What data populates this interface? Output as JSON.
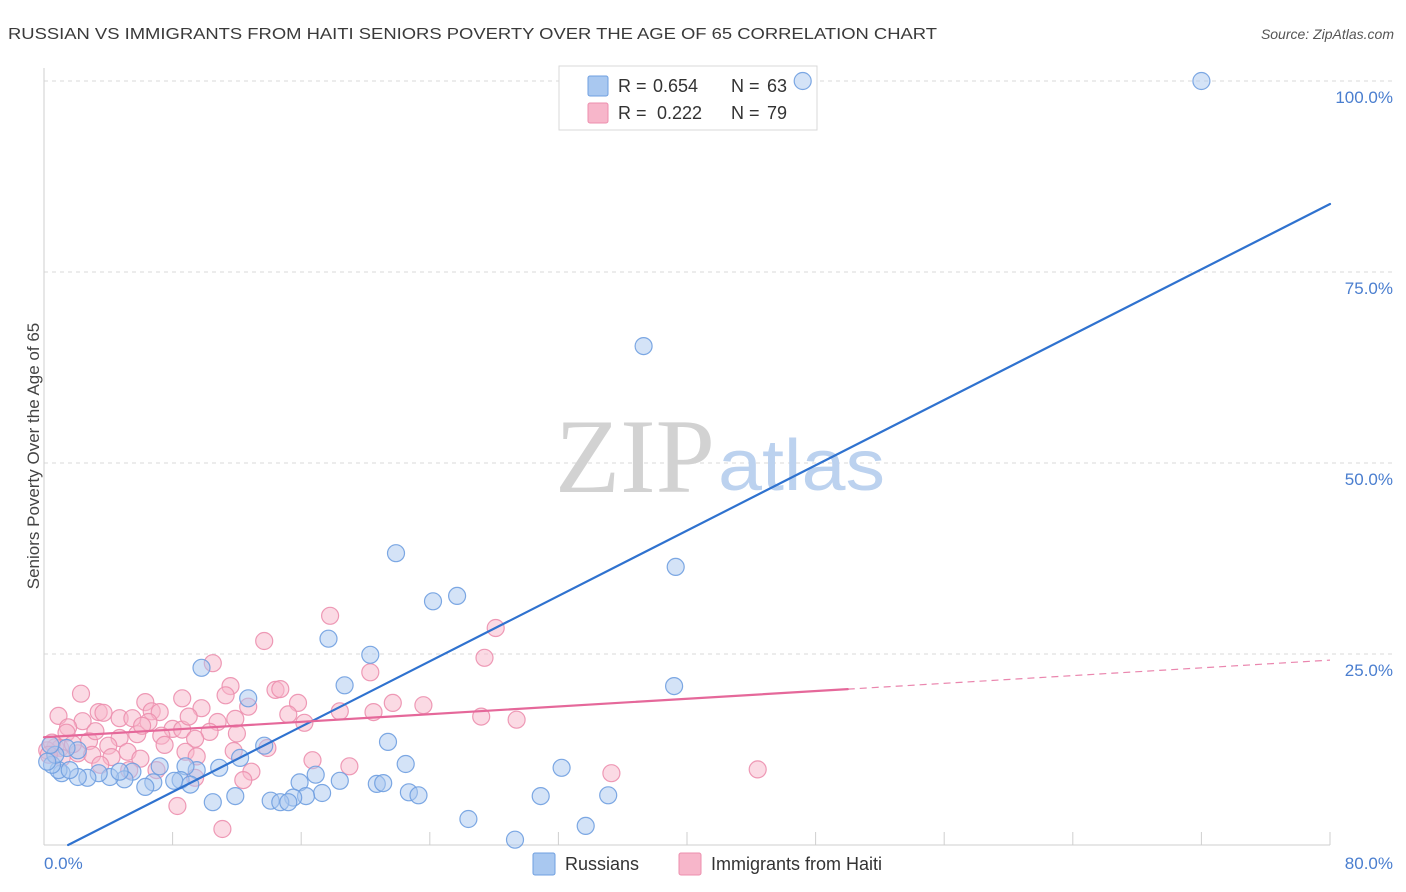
{
  "source": "Source: ZipAtlas.com",
  "watermark": {
    "zip": "ZIP",
    "atlas": "atlas"
  },
  "colors": {
    "russians_fill": "#a9c8f0",
    "russians_stroke": "#6f9fe0",
    "russians_line": "#2f72cf",
    "haiti_fill": "#f7b6ca",
    "haiti_stroke": "#ec8fae",
    "haiti_line": "#e5689a",
    "tick_label": "#4a7ecf",
    "grid": "#dadada",
    "axis": "#cfcfcf"
  },
  "legend": {
    "r_label": "R =",
    "n_label": "N ="
  },
  "chart_data": {
    "type": "scatter",
    "title": "RUSSIAN VS IMMIGRANTS FROM HAITI SENIORS POVERTY OVER THE AGE OF 65 CORRELATION CHART",
    "xlabel": "",
    "ylabel": "Seniors Poverty Over the Age of 65",
    "xlim": [
      0,
      80
    ],
    "ylim": [
      0,
      100
    ],
    "x_ticks": [
      0,
      8,
      16,
      24,
      32,
      40,
      48,
      56,
      64,
      72,
      80
    ],
    "x_tick_labels": [
      "0.0%",
      "80.0%"
    ],
    "y_ticks": [
      {
        "value": 100,
        "label": "100.0%"
      },
      {
        "value": 75,
        "label": "75.0%"
      },
      {
        "value": 50,
        "label": "50.0%"
      },
      {
        "value": 25,
        "label": "25.0%"
      }
    ],
    "grid": true,
    "legend_position": "top-center",
    "series": [
      {
        "name": "Russians",
        "R": "0.654",
        "N": "63",
        "trend": {
          "solid": [
            [
              1.5,
              0
            ],
            [
              80,
              83.9
            ]
          ]
        },
        "points": [
          [
            47.2,
            100
          ],
          [
            72.0,
            100
          ],
          [
            37.3,
            65.3
          ],
          [
            39.3,
            36.4
          ],
          [
            21.9,
            38.2
          ],
          [
            24.2,
            31.9
          ],
          [
            25.7,
            32.6
          ],
          [
            17.7,
            27.0
          ],
          [
            20.3,
            24.9
          ],
          [
            18.7,
            20.9
          ],
          [
            39.2,
            20.8
          ],
          [
            9.8,
            23.2
          ],
          [
            12.7,
            19.2
          ],
          [
            21.4,
            13.5
          ],
          [
            13.7,
            13.0
          ],
          [
            12.2,
            11.4
          ],
          [
            22.5,
            10.6
          ],
          [
            32.2,
            10.1
          ],
          [
            10.9,
            10.1
          ],
          [
            9.5,
            9.8
          ],
          [
            7.2,
            10.3
          ],
          [
            8.8,
            10.3
          ],
          [
            5.5,
            9.6
          ],
          [
            16.9,
            9.2
          ],
          [
            15.9,
            8.2
          ],
          [
            18.4,
            8.4
          ],
          [
            20.7,
            8.0
          ],
          [
            21.1,
            8.1
          ],
          [
            22.7,
            6.9
          ],
          [
            23.3,
            6.5
          ],
          [
            17.3,
            6.8
          ],
          [
            16.3,
            6.4
          ],
          [
            15.5,
            6.2
          ],
          [
            11.9,
            6.4
          ],
          [
            10.5,
            5.6
          ],
          [
            14.1,
            5.8
          ],
          [
            14.7,
            5.6
          ],
          [
            15.2,
            5.6
          ],
          [
            30.9,
            6.4
          ],
          [
            35.1,
            6.5
          ],
          [
            26.4,
            3.4
          ],
          [
            33.7,
            2.5
          ],
          [
            29.3,
            0.7
          ],
          [
            8.5,
            8.5
          ],
          [
            8.1,
            8.4
          ],
          [
            9.1,
            7.9
          ],
          [
            6.8,
            8.2
          ],
          [
            6.3,
            7.6
          ],
          [
            5.0,
            8.6
          ],
          [
            4.1,
            8.9
          ],
          [
            3.4,
            9.4
          ],
          [
            2.7,
            8.8
          ],
          [
            2.1,
            8.9
          ],
          [
            1.1,
            9.4
          ],
          [
            0.9,
            9.8
          ],
          [
            1.6,
            9.8
          ],
          [
            0.5,
            10.5
          ],
          [
            2.1,
            12.4
          ],
          [
            1.4,
            12.7
          ],
          [
            0.7,
            11.8
          ],
          [
            0.2,
            10.9
          ],
          [
            0.4,
            13.1
          ],
          [
            4.7,
            9.6
          ]
        ]
      },
      {
        "name": "Immigrants from Haiti",
        "R": "0.222",
        "N": "79",
        "trend": {
          "solid": [
            [
              0,
              14.1
            ],
            [
              50,
              20.4
            ]
          ],
          "dashed": [
            [
              50,
              20.4
            ],
            [
              80,
              24.2
            ]
          ]
        },
        "points": [
          [
            17.8,
            30.0
          ],
          [
            28.1,
            28.4
          ],
          [
            13.7,
            26.7
          ],
          [
            27.4,
            24.5
          ],
          [
            10.5,
            23.8
          ],
          [
            20.3,
            22.6
          ],
          [
            11.6,
            20.8
          ],
          [
            14.4,
            20.3
          ],
          [
            14.7,
            20.4
          ],
          [
            11.3,
            19.6
          ],
          [
            8.6,
            19.2
          ],
          [
            2.3,
            19.8
          ],
          [
            6.3,
            18.7
          ],
          [
            15.8,
            18.6
          ],
          [
            21.7,
            18.6
          ],
          [
            23.6,
            18.3
          ],
          [
            12.7,
            18.1
          ],
          [
            9.8,
            17.9
          ],
          [
            18.4,
            17.5
          ],
          [
            20.5,
            17.4
          ],
          [
            6.7,
            17.5
          ],
          [
            7.2,
            17.4
          ],
          [
            3.4,
            17.4
          ],
          [
            3.7,
            17.3
          ],
          [
            15.2,
            17.1
          ],
          [
            4.7,
            16.6
          ],
          [
            5.5,
            16.6
          ],
          [
            0.9,
            16.9
          ],
          [
            27.2,
            16.8
          ],
          [
            29.4,
            16.4
          ],
          [
            2.4,
            16.2
          ],
          [
            11.9,
            16.5
          ],
          [
            6.5,
            16.1
          ],
          [
            16.2,
            16.0
          ],
          [
            10.8,
            16.1
          ],
          [
            1.5,
            15.4
          ],
          [
            8.0,
            15.2
          ],
          [
            8.6,
            15.1
          ],
          [
            10.3,
            14.8
          ],
          [
            1.4,
            14.7
          ],
          [
            5.8,
            14.5
          ],
          [
            7.3,
            14.3
          ],
          [
            4.7,
            14.0
          ],
          [
            9.4,
            13.9
          ],
          [
            2.8,
            13.6
          ],
          [
            4.0,
            13.0
          ],
          [
            7.5,
            13.1
          ],
          [
            0.7,
            12.8
          ],
          [
            1.0,
            12.7
          ],
          [
            0.2,
            12.4
          ],
          [
            13.9,
            12.7
          ],
          [
            11.8,
            12.3
          ],
          [
            8.8,
            12.2
          ],
          [
            5.2,
            12.2
          ],
          [
            2.1,
            12.0
          ],
          [
            1.1,
            11.4
          ],
          [
            3.0,
            11.8
          ],
          [
            4.2,
            11.5
          ],
          [
            16.7,
            11.1
          ],
          [
            9.5,
            11.6
          ],
          [
            6.0,
            11.3
          ],
          [
            3.5,
            10.5
          ],
          [
            12.9,
            9.6
          ],
          [
            7.0,
            9.8
          ],
          [
            35.3,
            9.4
          ],
          [
            44.4,
            9.9
          ],
          [
            5.3,
            9.8
          ],
          [
            12.4,
            8.5
          ],
          [
            9.4,
            8.8
          ],
          [
            8.3,
            5.1
          ],
          [
            11.1,
            2.1
          ],
          [
            19.0,
            10.3
          ],
          [
            0.5,
            13.4
          ],
          [
            1.8,
            13.2
          ],
          [
            3.2,
            14.9
          ],
          [
            6.1,
            15.6
          ],
          [
            9.0,
            16.8
          ],
          [
            12.0,
            14.6
          ],
          [
            0.3,
            11.8
          ]
        ]
      }
    ]
  }
}
